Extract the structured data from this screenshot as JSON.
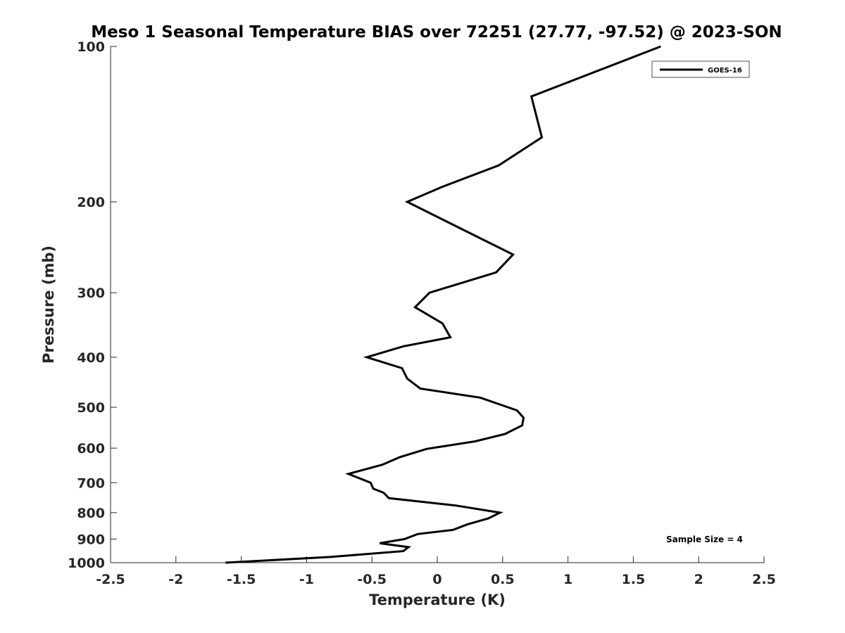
{
  "chart_data": {
    "type": "line",
    "title": "Meso 1 Seasonal Temperature BIAS over 72251 (27.77, -97.52) @ 2023-SON",
    "xlabel": "Temperature (K)",
    "ylabel": "Pressure (mb)",
    "xlim": [
      -2.5,
      2.5
    ],
    "ylim": [
      100,
      1000
    ],
    "y_scale": "log",
    "y_reversed": true,
    "grid": false,
    "legend_position": "top-right",
    "x_ticks": [
      -2.5,
      -2,
      -1.5,
      -1,
      -0.5,
      0,
      0.5,
      1,
      1.5,
      2,
      2.5
    ],
    "x_tick_labels": [
      "-2.5",
      "-2",
      "-1.5",
      "-1",
      "-0.5",
      "0",
      "0.5",
      "1",
      "1.5",
      "2",
      "2.5"
    ],
    "y_ticks": [
      100,
      200,
      300,
      400,
      500,
      600,
      700,
      800,
      900,
      1000
    ],
    "y_tick_labels": [
      "100",
      "200",
      "300",
      "400",
      "500",
      "600",
      "700",
      "800",
      "900",
      "1000"
    ],
    "annotation": "Sample Size = 4",
    "line_color": "#000000",
    "series": [
      {
        "name": "GOES-16",
        "points": [
          {
            "x": 1.71,
            "p": 100
          },
          {
            "x": 0.72,
            "p": 125
          },
          {
            "x": 0.8,
            "p": 150
          },
          {
            "x": 0.47,
            "p": 170
          },
          {
            "x": 0.04,
            "p": 187
          },
          {
            "x": -0.23,
            "p": 200
          },
          {
            "x": 0.31,
            "p": 234
          },
          {
            "x": 0.58,
            "p": 253
          },
          {
            "x": 0.45,
            "p": 274
          },
          {
            "x": -0.06,
            "p": 300
          },
          {
            "x": -0.17,
            "p": 320
          },
          {
            "x": 0.04,
            "p": 344
          },
          {
            "x": 0.1,
            "p": 366
          },
          {
            "x": -0.26,
            "p": 381
          },
          {
            "x": -0.54,
            "p": 400
          },
          {
            "x": -0.27,
            "p": 420
          },
          {
            "x": -0.23,
            "p": 440
          },
          {
            "x": -0.13,
            "p": 460
          },
          {
            "x": 0.33,
            "p": 479
          },
          {
            "x": 0.61,
            "p": 507
          },
          {
            "x": 0.66,
            "p": 524
          },
          {
            "x": 0.65,
            "p": 542
          },
          {
            "x": 0.52,
            "p": 563
          },
          {
            "x": 0.29,
            "p": 582
          },
          {
            "x": -0.08,
            "p": 602
          },
          {
            "x": -0.29,
            "p": 625
          },
          {
            "x": -0.42,
            "p": 646
          },
          {
            "x": -0.68,
            "p": 673
          },
          {
            "x": -0.51,
            "p": 700
          },
          {
            "x": -0.49,
            "p": 719
          },
          {
            "x": -0.41,
            "p": 732
          },
          {
            "x": -0.37,
            "p": 750
          },
          {
            "x": 0.14,
            "p": 775
          },
          {
            "x": 0.48,
            "p": 800
          },
          {
            "x": 0.39,
            "p": 821
          },
          {
            "x": 0.23,
            "p": 843
          },
          {
            "x": 0.12,
            "p": 864
          },
          {
            "x": -0.15,
            "p": 880
          },
          {
            "x": -0.25,
            "p": 900
          },
          {
            "x": -0.44,
            "p": 917
          },
          {
            "x": -0.22,
            "p": 933
          },
          {
            "x": -0.26,
            "p": 950
          },
          {
            "x": -0.82,
            "p": 975
          },
          {
            "x": -1.62,
            "p": 1000
          }
        ]
      }
    ]
  }
}
